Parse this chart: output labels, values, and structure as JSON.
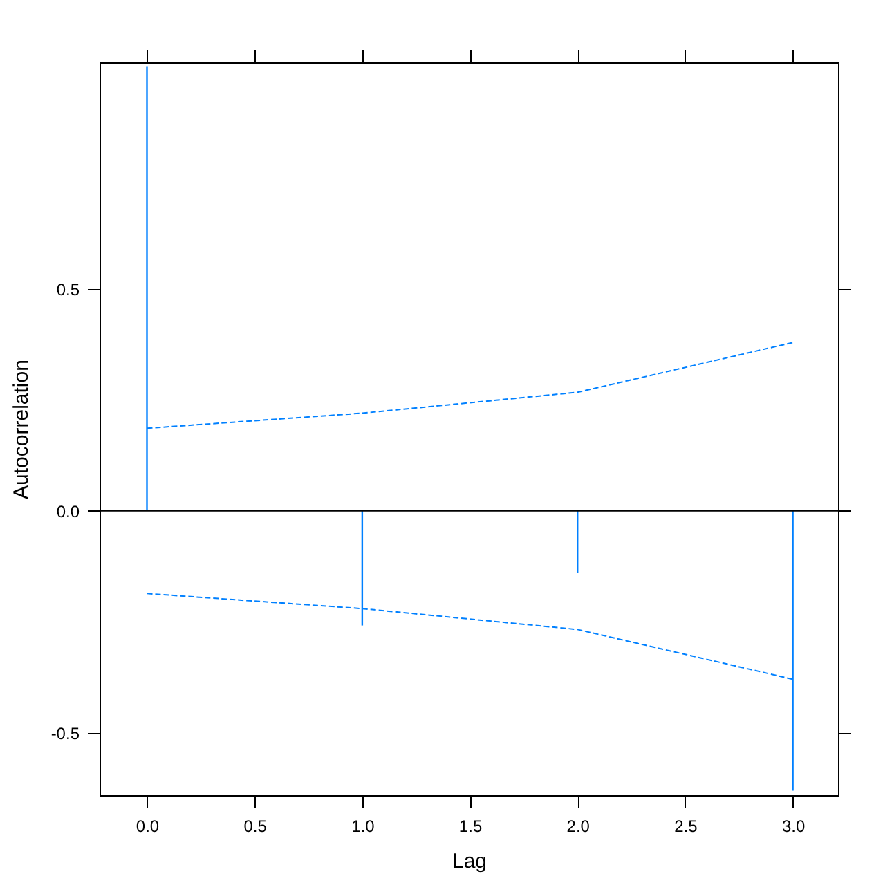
{
  "chart_data": {
    "type": "bar",
    "xlabel": "Lag",
    "ylabel": "Autocorrelation",
    "x": [
      0,
      1,
      2,
      3
    ],
    "series": [
      {
        "color": "#0080ff",
        "values": [
          1.0,
          -0.258,
          -0.14,
          -0.63
        ]
      },
      {
        "type": "line",
        "color": "#0080ff",
        "line_style": "dashed",
        "values": [
          0.186,
          0.22,
          0.267,
          0.379
        ]
      },
      {
        "type": "line",
        "color": "#0080ff",
        "line_style": "dashed",
        "values": [
          -0.186,
          -0.22,
          -0.267,
          -0.379
        ]
      }
    ],
    "xlim": [
      -0.22,
      3.21
    ],
    "ylim": [
      -0.64,
      1.01
    ],
    "xticks": [
      {
        "value": 0,
        "label": "0.0"
      },
      {
        "value": 0.5,
        "label": "0.5"
      },
      {
        "value": 1,
        "label": "1.0"
      },
      {
        "value": 1.5,
        "label": "1.5"
      },
      {
        "value": 2,
        "label": "2.0"
      },
      {
        "value": 2.5,
        "label": "2.5"
      },
      {
        "value": 3,
        "label": "3.0"
      }
    ],
    "yticks": [
      {
        "value": -0.5,
        "label": "-0.5"
      },
      {
        "value": 0,
        "label": "0.0"
      },
      {
        "value": 0.5,
        "label": "0.5"
      }
    ],
    "ref_lines": [
      {
        "axis": "y",
        "value": 0,
        "color": "#000000"
      }
    ],
    "grid": false
  }
}
